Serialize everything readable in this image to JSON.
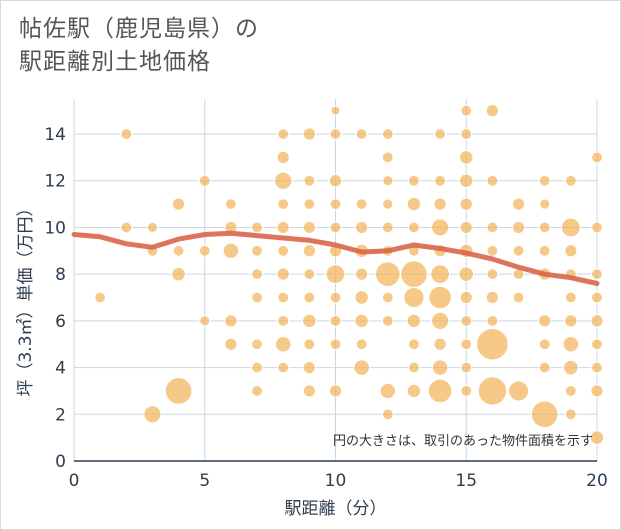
{
  "title_line1": "帖佐駅（鹿児島県）の",
  "title_line2": "駅距離別土地価格",
  "colors": {
    "bubble": "#f2b45a",
    "trend": "#d9654a",
    "grid": "#c9d7e3",
    "axis": "#2c3e50"
  },
  "chart_data": {
    "type": "scatter",
    "title": "帖佐駅（鹿児島県）の駅距離別土地価格",
    "xlabel": "駅距離（分）",
    "ylabel": "坪（3.3㎡）単価（万円）",
    "xlim": [
      0,
      20
    ],
    "ylim": [
      0,
      15.5
    ],
    "xticks": [
      0,
      5,
      10,
      15,
      20
    ],
    "yticks": [
      0,
      2,
      4,
      6,
      8,
      10,
      12,
      14
    ],
    "grid": true,
    "annotation": "円の大きさは、取引のあった物件面積を示す",
    "points": [
      {
        "x": 1,
        "y": 7,
        "s": 1
      },
      {
        "x": 2,
        "y": 14,
        "s": 1
      },
      {
        "x": 2,
        "y": 10,
        "s": 1
      },
      {
        "x": 3,
        "y": 10,
        "s": 0.8
      },
      {
        "x": 3,
        "y": 9,
        "s": 1
      },
      {
        "x": 3,
        "y": 2,
        "s": 4
      },
      {
        "x": 4,
        "y": 11,
        "s": 1.5
      },
      {
        "x": 4,
        "y": 9,
        "s": 1
      },
      {
        "x": 4,
        "y": 8,
        "s": 2
      },
      {
        "x": 4,
        "y": 3,
        "s": 12
      },
      {
        "x": 5,
        "y": 12,
        "s": 1
      },
      {
        "x": 5,
        "y": 9,
        "s": 1
      },
      {
        "x": 5,
        "y": 6,
        "s": 0.8
      },
      {
        "x": 6,
        "y": 11,
        "s": 1
      },
      {
        "x": 6,
        "y": 10,
        "s": 1.5
      },
      {
        "x": 6,
        "y": 9,
        "s": 3
      },
      {
        "x": 6,
        "y": 6,
        "s": 1.5
      },
      {
        "x": 6,
        "y": 5,
        "s": 1.5
      },
      {
        "x": 7,
        "y": 10,
        "s": 1
      },
      {
        "x": 7,
        "y": 9,
        "s": 1
      },
      {
        "x": 7,
        "y": 8,
        "s": 1
      },
      {
        "x": 7,
        "y": 7,
        "s": 1
      },
      {
        "x": 7,
        "y": 5,
        "s": 1
      },
      {
        "x": 7,
        "y": 4,
        "s": 1
      },
      {
        "x": 7,
        "y": 3,
        "s": 1
      },
      {
        "x": 8,
        "y": 14,
        "s": 1
      },
      {
        "x": 8,
        "y": 13,
        "s": 1.5
      },
      {
        "x": 8,
        "y": 12,
        "s": 4
      },
      {
        "x": 8,
        "y": 11,
        "s": 1
      },
      {
        "x": 8,
        "y": 10,
        "s": 1.5
      },
      {
        "x": 8,
        "y": 9,
        "s": 1
      },
      {
        "x": 8,
        "y": 8,
        "s": 1.5
      },
      {
        "x": 8,
        "y": 7,
        "s": 1
      },
      {
        "x": 8,
        "y": 6,
        "s": 1
      },
      {
        "x": 8,
        "y": 5,
        "s": 3
      },
      {
        "x": 8,
        "y": 4,
        "s": 1
      },
      {
        "x": 9,
        "y": 14,
        "s": 1.5
      },
      {
        "x": 9,
        "y": 12,
        "s": 1
      },
      {
        "x": 9,
        "y": 11,
        "s": 1
      },
      {
        "x": 9,
        "y": 10,
        "s": 1.5
      },
      {
        "x": 9,
        "y": 9,
        "s": 1.5
      },
      {
        "x": 9,
        "y": 8,
        "s": 1
      },
      {
        "x": 9,
        "y": 7,
        "s": 1
      },
      {
        "x": 9,
        "y": 6,
        "s": 2
      },
      {
        "x": 9,
        "y": 5,
        "s": 1
      },
      {
        "x": 9,
        "y": 4,
        "s": 1.5
      },
      {
        "x": 9,
        "y": 3,
        "s": 1.5
      },
      {
        "x": 10,
        "y": 15,
        "s": 0.5
      },
      {
        "x": 10,
        "y": 14,
        "s": 1
      },
      {
        "x": 10,
        "y": 12,
        "s": 1.5
      },
      {
        "x": 10,
        "y": 11,
        "s": 1
      },
      {
        "x": 10,
        "y": 10,
        "s": 1
      },
      {
        "x": 10,
        "y": 9,
        "s": 1.5
      },
      {
        "x": 10,
        "y": 8,
        "s": 5
      },
      {
        "x": 10,
        "y": 7,
        "s": 1
      },
      {
        "x": 10,
        "y": 6,
        "s": 1
      },
      {
        "x": 10,
        "y": 5,
        "s": 1
      },
      {
        "x": 10,
        "y": 3,
        "s": 1.5
      },
      {
        "x": 11,
        "y": 14,
        "s": 1
      },
      {
        "x": 11,
        "y": 11,
        "s": 1
      },
      {
        "x": 11,
        "y": 10,
        "s": 1.5
      },
      {
        "x": 11,
        "y": 9,
        "s": 2
      },
      {
        "x": 11,
        "y": 8,
        "s": 1.5
      },
      {
        "x": 11,
        "y": 7,
        "s": 2
      },
      {
        "x": 11,
        "y": 6,
        "s": 2
      },
      {
        "x": 11,
        "y": 5,
        "s": 1
      },
      {
        "x": 11,
        "y": 4,
        "s": 3
      },
      {
        "x": 12,
        "y": 14,
        "s": 1
      },
      {
        "x": 12,
        "y": 13,
        "s": 1
      },
      {
        "x": 12,
        "y": 12,
        "s": 0.8
      },
      {
        "x": 12,
        "y": 11,
        "s": 0.8
      },
      {
        "x": 12,
        "y": 10,
        "s": 1
      },
      {
        "x": 12,
        "y": 9,
        "s": 1
      },
      {
        "x": 12,
        "y": 8,
        "s": 10
      },
      {
        "x": 12,
        "y": 7,
        "s": 1
      },
      {
        "x": 12,
        "y": 6,
        "s": 1
      },
      {
        "x": 12,
        "y": 3,
        "s": 3
      },
      {
        "x": 12,
        "y": 2,
        "s": 1
      },
      {
        "x": 13,
        "y": 12,
        "s": 1
      },
      {
        "x": 13,
        "y": 11,
        "s": 2
      },
      {
        "x": 13,
        "y": 10,
        "s": 1
      },
      {
        "x": 13,
        "y": 9,
        "s": 1
      },
      {
        "x": 13,
        "y": 8,
        "s": 12
      },
      {
        "x": 13,
        "y": 7,
        "s": 6
      },
      {
        "x": 13,
        "y": 6,
        "s": 2
      },
      {
        "x": 13,
        "y": 5,
        "s": 1
      },
      {
        "x": 13,
        "y": 4,
        "s": 1
      },
      {
        "x": 13,
        "y": 3,
        "s": 2
      },
      {
        "x": 14,
        "y": 14,
        "s": 1
      },
      {
        "x": 14,
        "y": 12,
        "s": 1
      },
      {
        "x": 14,
        "y": 11,
        "s": 1.5
      },
      {
        "x": 14,
        "y": 10,
        "s": 4
      },
      {
        "x": 14,
        "y": 9,
        "s": 1.5
      },
      {
        "x": 14,
        "y": 8,
        "s": 5
      },
      {
        "x": 14,
        "y": 7,
        "s": 8
      },
      {
        "x": 14,
        "y": 6,
        "s": 4
      },
      {
        "x": 14,
        "y": 5,
        "s": 1.5
      },
      {
        "x": 14,
        "y": 4,
        "s": 3
      },
      {
        "x": 14,
        "y": 3,
        "s": 9
      },
      {
        "x": 15,
        "y": 15,
        "s": 1
      },
      {
        "x": 15,
        "y": 14,
        "s": 1
      },
      {
        "x": 15,
        "y": 13,
        "s": 2
      },
      {
        "x": 15,
        "y": 12,
        "s": 2
      },
      {
        "x": 15,
        "y": 11,
        "s": 1.5
      },
      {
        "x": 15,
        "y": 10,
        "s": 1.5
      },
      {
        "x": 15,
        "y": 9,
        "s": 2
      },
      {
        "x": 15,
        "y": 8,
        "s": 2.5
      },
      {
        "x": 15,
        "y": 7,
        "s": 1.5
      },
      {
        "x": 15,
        "y": 6,
        "s": 1
      },
      {
        "x": 15,
        "y": 5,
        "s": 1
      },
      {
        "x": 15,
        "y": 4,
        "s": 1
      },
      {
        "x": 15,
        "y": 3,
        "s": 1
      },
      {
        "x": 16,
        "y": 15,
        "s": 1.5
      },
      {
        "x": 16,
        "y": 12,
        "s": 1
      },
      {
        "x": 16,
        "y": 10,
        "s": 1
      },
      {
        "x": 16,
        "y": 9,
        "s": 1
      },
      {
        "x": 16,
        "y": 8,
        "s": 1
      },
      {
        "x": 16,
        "y": 7,
        "s": 1.5
      },
      {
        "x": 16,
        "y": 6,
        "s": 1
      },
      {
        "x": 16,
        "y": 5,
        "s": 18
      },
      {
        "x": 16,
        "y": 3,
        "s": 14
      },
      {
        "x": 17,
        "y": 11,
        "s": 1.5
      },
      {
        "x": 17,
        "y": 10,
        "s": 1.5
      },
      {
        "x": 17,
        "y": 9,
        "s": 1
      },
      {
        "x": 17,
        "y": 8,
        "s": 1
      },
      {
        "x": 17,
        "y": 7,
        "s": 1
      },
      {
        "x": 17,
        "y": 3,
        "s": 6
      },
      {
        "x": 18,
        "y": 12,
        "s": 1
      },
      {
        "x": 18,
        "y": 11,
        "s": 0.8
      },
      {
        "x": 18,
        "y": 10,
        "s": 1
      },
      {
        "x": 18,
        "y": 9,
        "s": 1
      },
      {
        "x": 18,
        "y": 8,
        "s": 1.5
      },
      {
        "x": 18,
        "y": 6,
        "s": 1.5
      },
      {
        "x": 18,
        "y": 5,
        "s": 1
      },
      {
        "x": 18,
        "y": 4,
        "s": 1
      },
      {
        "x": 18,
        "y": 2,
        "s": 12
      },
      {
        "x": 19,
        "y": 12,
        "s": 1
      },
      {
        "x": 19,
        "y": 10,
        "s": 5
      },
      {
        "x": 19,
        "y": 9,
        "s": 1.5
      },
      {
        "x": 19,
        "y": 8,
        "s": 1
      },
      {
        "x": 19,
        "y": 7,
        "s": 1
      },
      {
        "x": 19,
        "y": 6,
        "s": 1.5
      },
      {
        "x": 19,
        "y": 5,
        "s": 3
      },
      {
        "x": 19,
        "y": 4,
        "s": 2.5
      },
      {
        "x": 19,
        "y": 3,
        "s": 1
      },
      {
        "x": 19,
        "y": 2,
        "s": 1
      },
      {
        "x": 20,
        "y": 13,
        "s": 1
      },
      {
        "x": 20,
        "y": 10,
        "s": 1
      },
      {
        "x": 20,
        "y": 8,
        "s": 1
      },
      {
        "x": 20,
        "y": 7,
        "s": 1
      },
      {
        "x": 20,
        "y": 6,
        "s": 1.5
      },
      {
        "x": 20,
        "y": 5,
        "s": 1
      },
      {
        "x": 20,
        "y": 4,
        "s": 1
      },
      {
        "x": 20,
        "y": 3,
        "s": 1.5
      },
      {
        "x": 20,
        "y": 1,
        "s": 2
      }
    ],
    "trend": {
      "x": [
        0,
        1,
        2,
        3,
        4,
        5,
        6,
        7,
        8,
        9,
        10,
        11,
        12,
        13,
        14,
        15,
        16,
        17,
        18,
        19,
        20
      ],
      "y": [
        9.7,
        9.6,
        9.3,
        9.15,
        9.5,
        9.7,
        9.75,
        9.65,
        9.55,
        9.45,
        9.25,
        8.95,
        9.0,
        9.25,
        9.1,
        8.9,
        8.65,
        8.3,
        8.0,
        7.85,
        7.6
      ]
    }
  }
}
